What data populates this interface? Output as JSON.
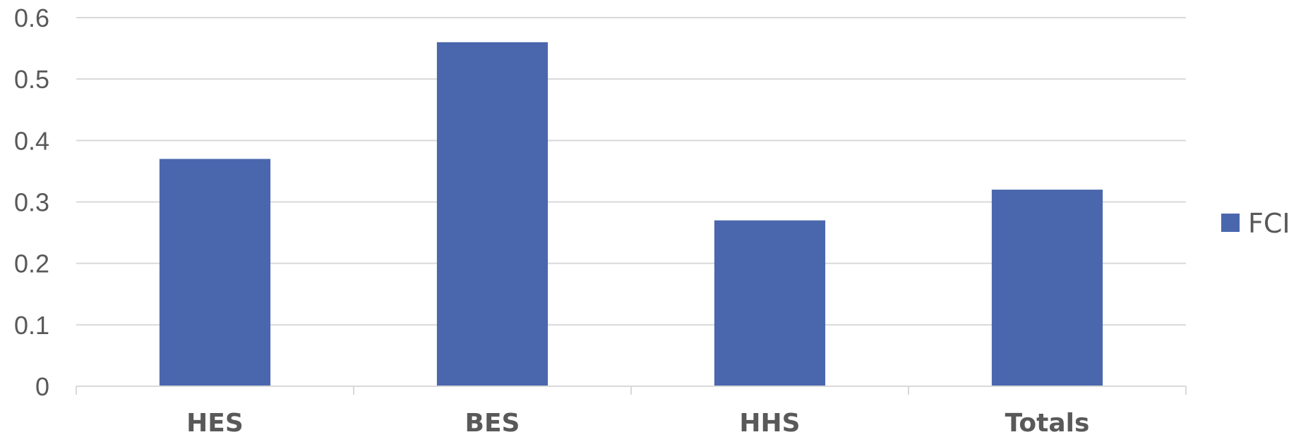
{
  "chart_data": {
    "type": "bar",
    "categories": [
      "HES",
      "BES",
      "HHS",
      "Totals"
    ],
    "series": [
      {
        "name": "FCI",
        "values": [
          0.37,
          0.56,
          0.27,
          0.32
        ],
        "color": "#4a67ad"
      }
    ],
    "ylim": [
      0,
      0.6
    ],
    "yticks": [
      "0",
      "0.1",
      "0.2",
      "0.3",
      "0.4",
      "0.5",
      "0.6"
    ],
    "grid": true,
    "legend_position": "right"
  }
}
